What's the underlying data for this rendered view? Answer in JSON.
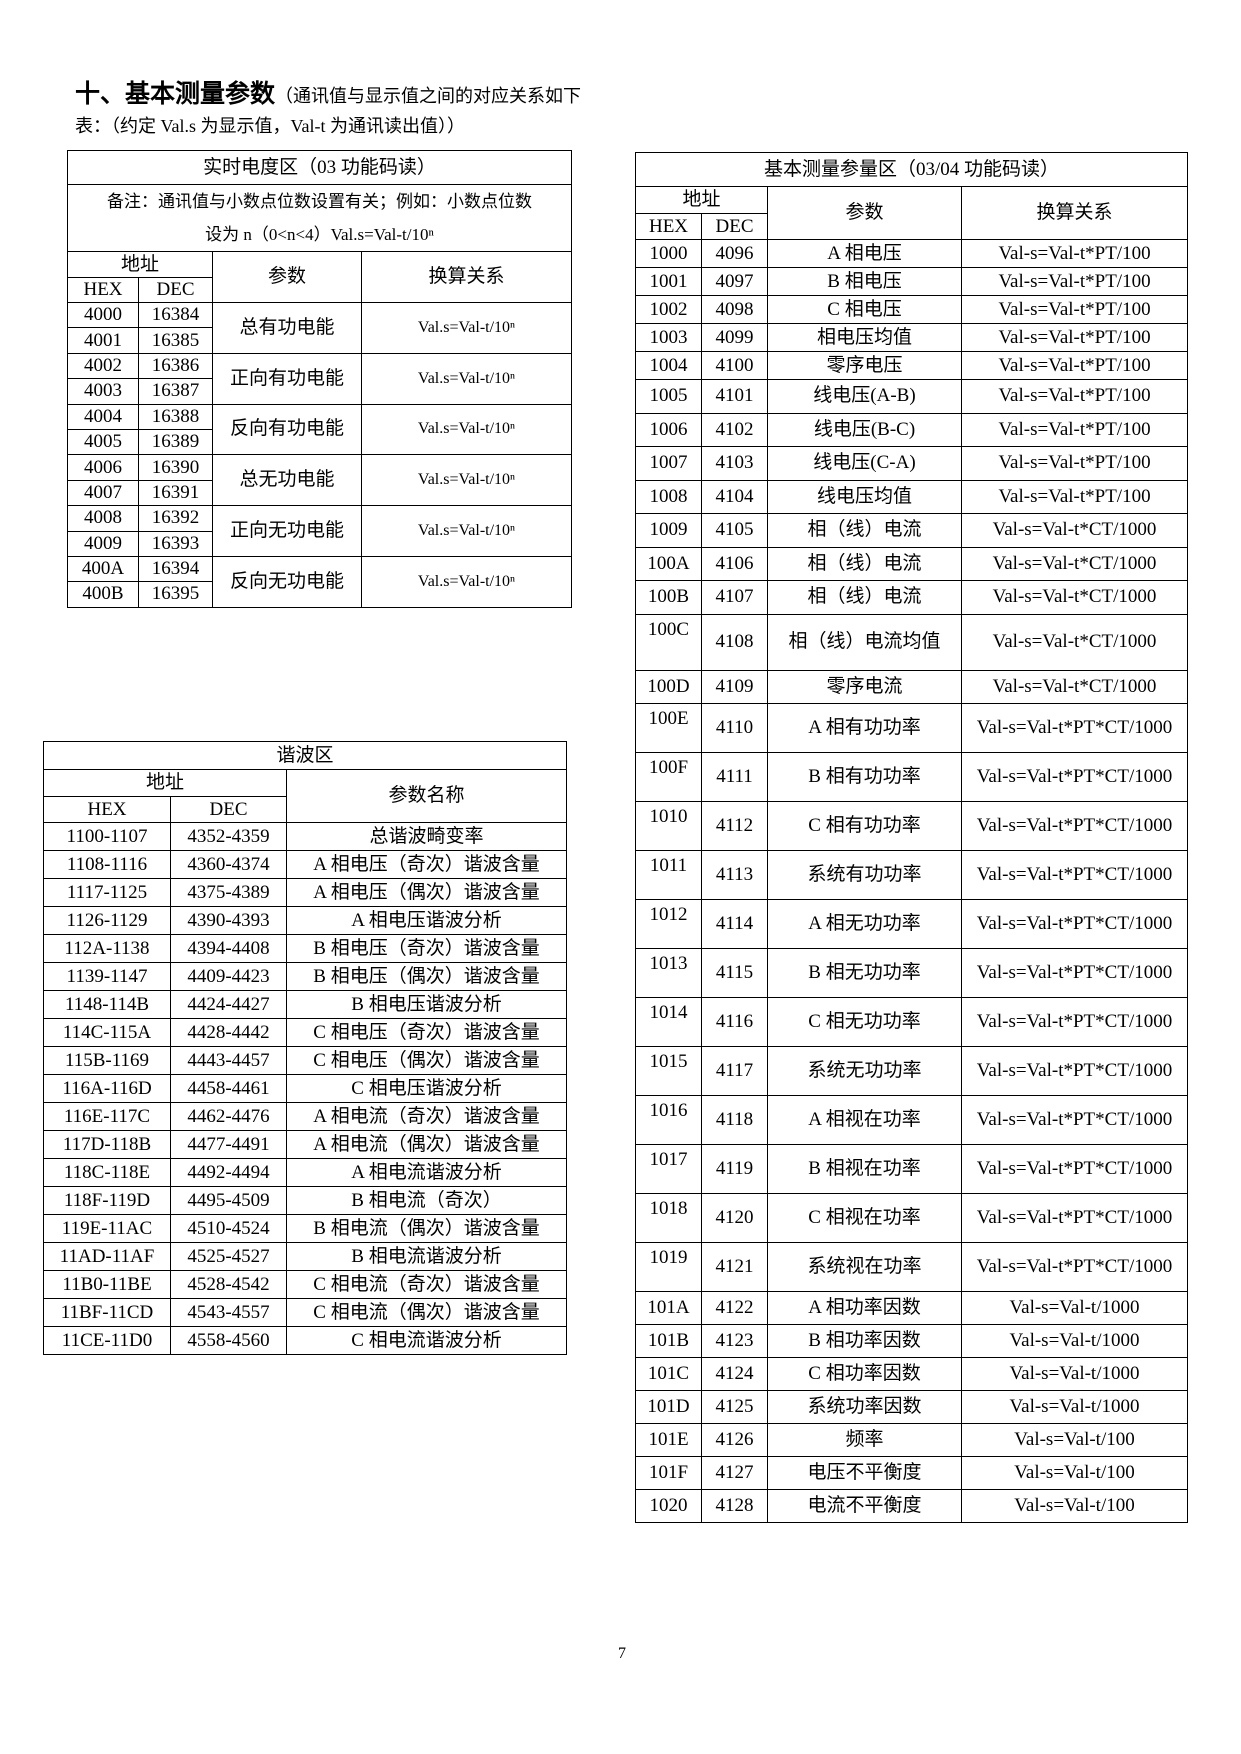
{
  "heading": {
    "title_bold": "十、基本测量参数",
    "title_rest": "（通讯值与显示值之间的对应关系如下",
    "line2": "表：（约定 Val.s 为显示值，Val-t 为通讯读出值））"
  },
  "energy_table": {
    "title": "实时电度区（03 功能码读）",
    "note_line1": "备注：通讯值与小数点位数设置有关；例如：小数点位数",
    "note_line2": "设为 n（0<n<4）Val.s=Val-t/10ⁿ",
    "headers": {
      "address": "地址",
      "hex": "HEX",
      "dec": "DEC",
      "param": "参数",
      "formula": "换算关系"
    },
    "groups": [
      {
        "rows": [
          [
            "4000",
            "16384"
          ],
          [
            "4001",
            "16385"
          ]
        ],
        "param": "总有功电能",
        "formula": "Val.s=Val-t/10ⁿ"
      },
      {
        "rows": [
          [
            "4002",
            "16386"
          ],
          [
            "4003",
            "16387"
          ]
        ],
        "param": "正向有功电能",
        "formula": "Val.s=Val-t/10ⁿ"
      },
      {
        "rows": [
          [
            "4004",
            "16388"
          ],
          [
            "4005",
            "16389"
          ]
        ],
        "param": "反向有功电能",
        "formula": "Val.s=Val-t/10ⁿ"
      },
      {
        "rows": [
          [
            "4006",
            "16390"
          ],
          [
            "4007",
            "16391"
          ]
        ],
        "param": "总无功电能",
        "formula": "Val.s=Val-t/10ⁿ"
      },
      {
        "rows": [
          [
            "4008",
            "16392"
          ],
          [
            "4009",
            "16393"
          ]
        ],
        "param": "正向无功电能",
        "formula": "Val.s=Val-t/10ⁿ"
      },
      {
        "rows": [
          [
            "400A",
            "16394"
          ],
          [
            "400B",
            "16395"
          ]
        ],
        "param": "反向无功电能",
        "formula": "Val.s=Val-t/10ⁿ"
      }
    ]
  },
  "basic_table": {
    "title": "基本测量参量区（03/04 功能码读）",
    "headers": {
      "address": "地址",
      "hex": "HEX",
      "dec": "DEC",
      "param": "参数",
      "formula": "换算关系"
    },
    "rows": [
      [
        "1000",
        "4096",
        "A 相电压",
        "Val-s=Val-t*PT/100"
      ],
      [
        "1001",
        "4097",
        "B 相电压",
        "Val-s=Val-t*PT/100"
      ],
      [
        "1002",
        "4098",
        "C 相电压",
        "Val-s=Val-t*PT/100"
      ],
      [
        "1003",
        "4099",
        "相电压均值",
        "Val-s=Val-t*PT/100"
      ],
      [
        "1004",
        "4100",
        "零序电压",
        "Val-s=Val-t*PT/100"
      ],
      [
        "1005",
        "4101",
        "线电压(A-B)",
        "Val-s=Val-t*PT/100"
      ],
      [
        "1006",
        "4102",
        "线电压(B-C)",
        "Val-s=Val-t*PT/100"
      ],
      [
        "1007",
        "4103",
        "线电压(C-A)",
        "Val-s=Val-t*PT/100"
      ],
      [
        "1008",
        "4104",
        "线电压均值",
        "Val-s=Val-t*PT/100"
      ],
      [
        "1009",
        "4105",
        "相（线）电流",
        "Val-s=Val-t*CT/1000"
      ],
      [
        "100A",
        "4106",
        "相（线）电流",
        "Val-s=Val-t*CT/1000"
      ],
      [
        "100B",
        "4107",
        "相（线）电流",
        "Val-s=Val-t*CT/1000"
      ],
      [
        "100C",
        "4108",
        "相（线）电流均值",
        "Val-s=Val-t*CT/1000"
      ],
      [
        "100D",
        "4109",
        "零序电流",
        "Val-s=Val-t*CT/1000"
      ],
      [
        "100E",
        "4110",
        "A 相有功功率",
        "Val-s=Val-t*PT*CT/1000"
      ],
      [
        "100F",
        "4111",
        "B 相有功功率",
        "Val-s=Val-t*PT*CT/1000"
      ],
      [
        "1010",
        "4112",
        "C 相有功功率",
        "Val-s=Val-t*PT*CT/1000"
      ],
      [
        "1011",
        "4113",
        "系统有功功率",
        "Val-s=Val-t*PT*CT/1000"
      ],
      [
        "1012",
        "4114",
        "A 相无功功率",
        "Val-s=Val-t*PT*CT/1000"
      ],
      [
        "1013",
        "4115",
        "B 相无功功率",
        "Val-s=Val-t*PT*CT/1000"
      ],
      [
        "1014",
        "4116",
        "C 相无功功率",
        "Val-s=Val-t*PT*CT/1000"
      ],
      [
        "1015",
        "4117",
        "系统无功功率",
        "Val-s=Val-t*PT*CT/1000"
      ],
      [
        "1016",
        "4118",
        "A 相视在功率",
        "Val-s=Val-t*PT*CT/1000"
      ],
      [
        "1017",
        "4119",
        "B 相视在功率",
        "Val-s=Val-t*PT*CT/1000"
      ],
      [
        "1018",
        "4120",
        "C 相视在功率",
        "Val-s=Val-t*PT*CT/1000"
      ],
      [
        "1019",
        "4121",
        "系统视在功率",
        "Val-s=Val-t*PT*CT/1000"
      ],
      [
        "101A",
        "4122",
        "A 相功率因数",
        "Val-s=Val-t/1000"
      ],
      [
        "101B",
        "4123",
        "B 相功率因数",
        "Val-s=Val-t/1000"
      ],
      [
        "101C",
        "4124",
        "C 相功率因数",
        "Val-s=Val-t/1000"
      ],
      [
        "101D",
        "4125",
        "系统功率因数",
        "Val-s=Val-t/1000"
      ],
      [
        "101E",
        "4126",
        "频率",
        "Val-s=Val-t/100"
      ],
      [
        "101F",
        "4127",
        "电压不平衡度",
        "Val-s=Val-t/100"
      ],
      [
        "1020",
        "4128",
        "电流不平衡度",
        "Val-s=Val-t/100"
      ]
    ]
  },
  "harmonic_table": {
    "title": "谐波区",
    "headers": {
      "address": "地址",
      "hex": "HEX",
      "dec": "DEC",
      "name": "参数名称"
    },
    "rows": [
      [
        "1100-1107",
        "4352-4359",
        "总谐波畸变率"
      ],
      [
        "1108-1116",
        "4360-4374",
        "A 相电压（奇次）谐波含量"
      ],
      [
        "1117-1125",
        "4375-4389",
        "A 相电压（偶次）谐波含量"
      ],
      [
        "1126-1129",
        "4390-4393",
        "A 相电压谐波分析"
      ],
      [
        "112A-1138",
        "4394-4408",
        "B 相电压（奇次）谐波含量"
      ],
      [
        "1139-1147",
        "4409-4423",
        "B 相电压（偶次）谐波含量"
      ],
      [
        "1148-114B",
        "4424-4427",
        "B 相电压谐波分析"
      ],
      [
        "114C-115A",
        "4428-4442",
        "C 相电压（奇次）谐波含量"
      ],
      [
        "115B-1169",
        "4443-4457",
        "C 相电压（偶次）谐波含量"
      ],
      [
        "116A-116D",
        "4458-4461",
        "C 相电压谐波分析"
      ],
      [
        "116E-117C",
        "4462-4476",
        "A 相电流（奇次）谐波含量"
      ],
      [
        "117D-118B",
        "4477-4491",
        "A 相电流（偶次）谐波含量"
      ],
      [
        "118C-118E",
        "4492-4494",
        "A 相电流谐波分析"
      ],
      [
        "118F-119D",
        "4495-4509",
        "B 相电流（奇次）"
      ],
      [
        "119E-11AC",
        "4510-4524",
        "B 相电流（偶次）谐波含量"
      ],
      [
        "11AD-11AF",
        "4525-4527",
        "B 相电流谐波分析"
      ],
      [
        "11B0-11BE",
        "4528-4542",
        "C 相电流（奇次）谐波含量"
      ],
      [
        "11BF-11CD",
        "4543-4557",
        "C 相电流（偶次）谐波含量"
      ],
      [
        "11CE-11D0",
        "4558-4560",
        "C 相电流谐波分析"
      ]
    ]
  },
  "page_number": "7"
}
